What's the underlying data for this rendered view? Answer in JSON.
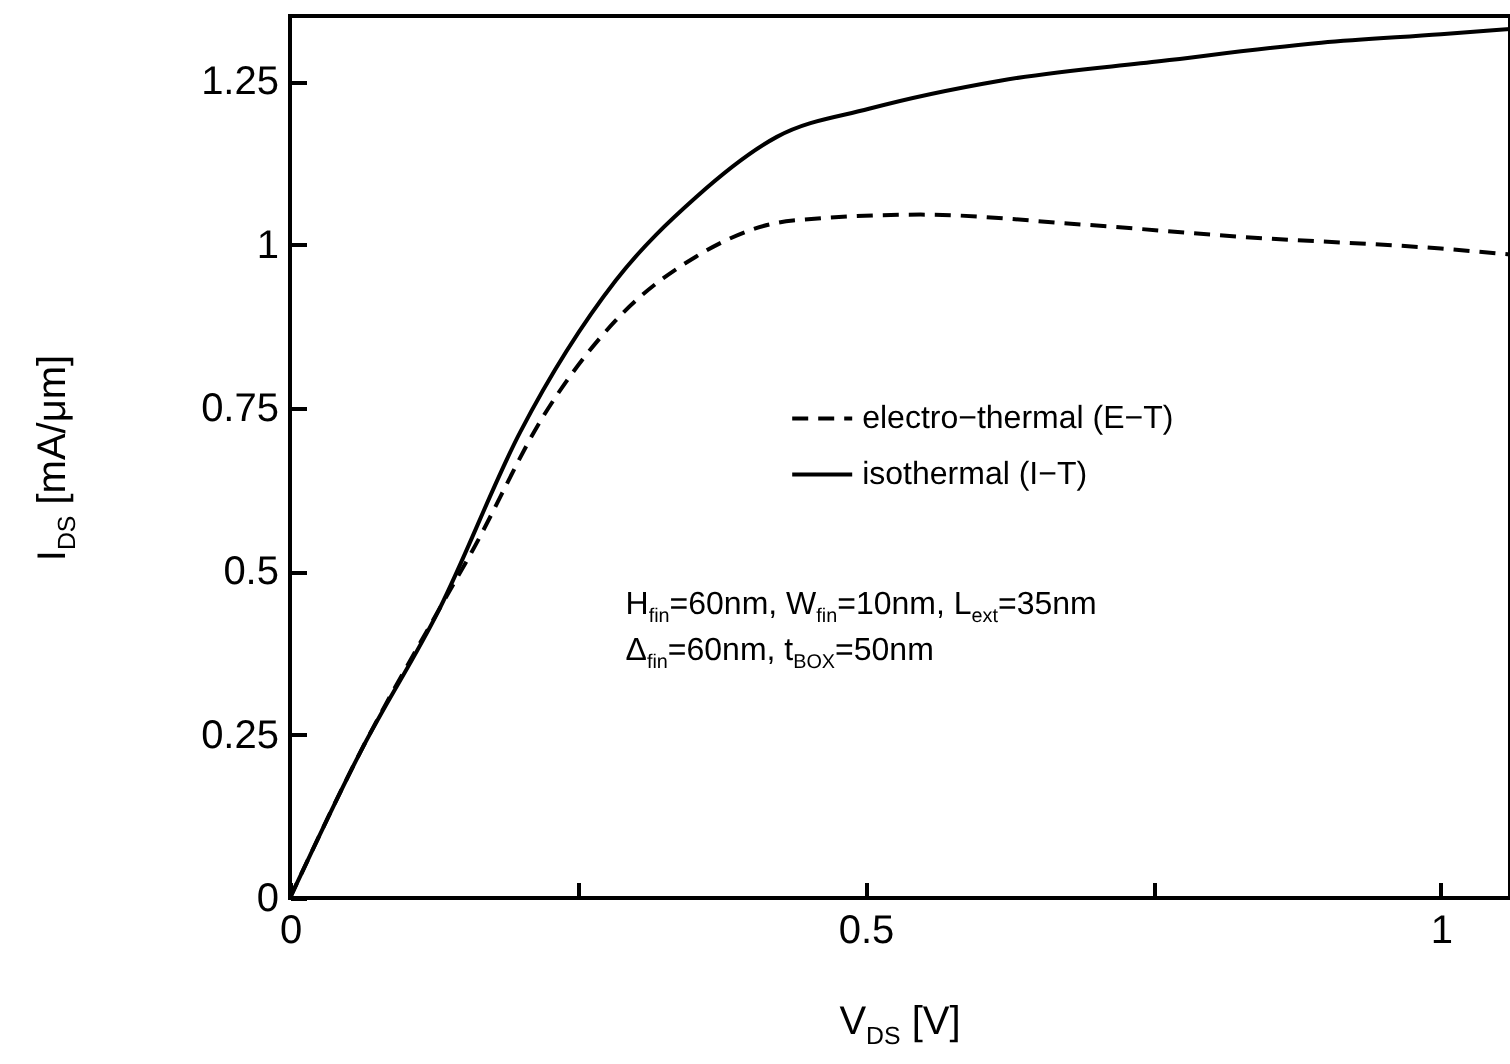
{
  "chart_data": {
    "type": "line",
    "xlabel": "V$_{DS}$ [V]",
    "ylabel": "I$_{DS}$ [mA/μm]",
    "xlim": [
      0,
      1.06
    ],
    "xticks": [
      0,
      {
        "value": 0.25,
        "label": null
      },
      0.5,
      {
        "value": 0.75,
        "label": null
      },
      1
    ],
    "ylim": [
      0,
      1.35
    ],
    "yticks": [
      0,
      0.25,
      0.5,
      0.75,
      1,
      1.25
    ],
    "legend": "right",
    "grid": false,
    "marker": "none",
    "series": [
      {
        "name": "electro−thermal (E−T)",
        "color": "#000000",
        "line_style": "dashed",
        "x": [
          0,
          0.061,
          0.13,
          0.158,
          0.221,
          0.283,
          0.353,
          0.437,
          0.548,
          0.687,
          0.826,
          1.0,
          1.06
        ],
        "values": [
          0,
          0.223,
          0.443,
          0.53,
          0.74,
          0.884,
          0.982,
          1.037,
          1.046,
          1.031,
          1.012,
          0.994,
          0.985
        ]
      },
      {
        "name": "isothermal (I−T)",
        "color": "#000000",
        "line_style": "solid",
        "x": [
          0,
          0.061,
          0.13,
          0.2,
          0.283,
          0.353,
          0.423,
          0.503,
          0.617,
          0.757,
          0.896,
          1.0,
          1.06
        ],
        "values": [
          0,
          0.223,
          0.443,
          0.713,
          0.945,
          1.073,
          1.165,
          1.208,
          1.251,
          1.281,
          1.309,
          1.322,
          1.33
        ]
      }
    ],
    "annotations": [
      "H$_{fin}$=60nm, W$_{fin}$=10nm, L$_{ext}$=35nm",
      "Δ$_{fin}$=60nm, t$_{BOX}$=50nm"
    ]
  }
}
